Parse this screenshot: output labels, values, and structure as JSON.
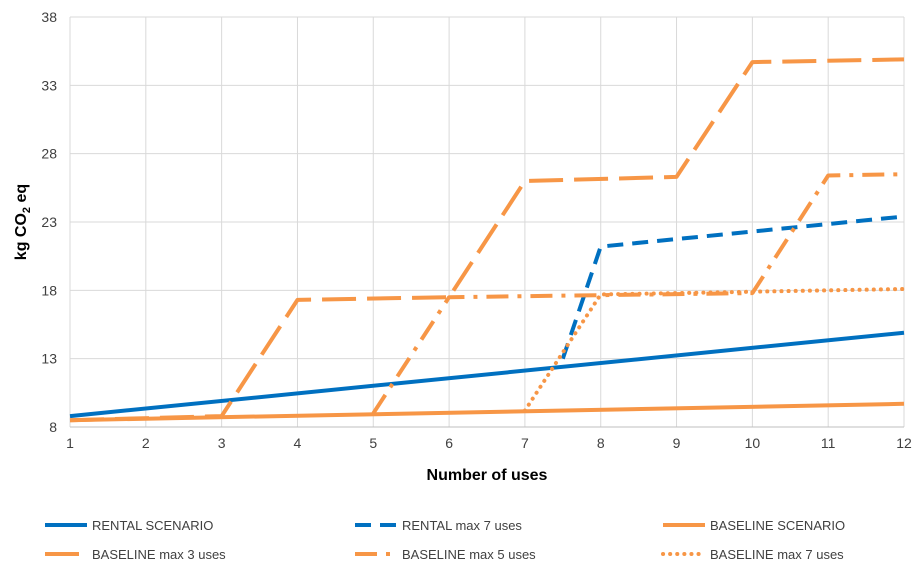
{
  "chart_data": {
    "type": "line",
    "xlabel": "Number of uses",
    "ylabel_main": "kg CO",
    "ylabel_sub": "2",
    "ylabel_tail": " eq",
    "xlim": [
      1,
      12
    ],
    "ylim": [
      8,
      38
    ],
    "x_ticks": [
      1,
      2,
      3,
      4,
      5,
      6,
      7,
      8,
      9,
      10,
      11,
      12
    ],
    "y_ticks": [
      8,
      13,
      18,
      23,
      28,
      33,
      38
    ],
    "grid": true,
    "legend_position": "bottom",
    "series": [
      {
        "name": "RENTAL SCENARIO",
        "color": "#0070C0",
        "style": "solid",
        "points": [
          [
            1,
            8.8
          ],
          [
            12,
            14.9
          ]
        ]
      },
      {
        "name": "RENTAL max 7 uses",
        "color": "#0070C0",
        "style": "dash",
        "points": [
          [
            7.5,
            13.0
          ],
          [
            8,
            21.2
          ],
          [
            12,
            23.4
          ]
        ]
      },
      {
        "name": "BASELINE SCENARIO",
        "color": "#F79646",
        "style": "solid",
        "points": [
          [
            1,
            8.5
          ],
          [
            12,
            9.7
          ]
        ]
      },
      {
        "name": "BASELINE max 3 uses",
        "color": "#F79646",
        "style": "longdash",
        "points": [
          [
            1,
            8.5
          ],
          [
            3,
            8.8
          ],
          [
            4,
            17.3
          ],
          [
            6,
            17.5
          ],
          [
            7,
            26.0
          ],
          [
            9,
            26.3
          ],
          [
            10,
            34.7
          ],
          [
            12,
            34.9
          ]
        ]
      },
      {
        "name": "BASELINE max 5 uses",
        "color": "#F79646",
        "style": "dashdot",
        "points": [
          [
            5,
            9.0
          ],
          [
            6,
            17.5
          ],
          [
            10,
            17.8
          ],
          [
            11,
            26.4
          ],
          [
            12,
            26.5
          ]
        ]
      },
      {
        "name": "BASELINE max 7 uses",
        "color": "#F79646",
        "style": "dot",
        "points": [
          [
            7,
            9.2
          ],
          [
            8,
            17.7
          ],
          [
            12,
            18.1
          ]
        ]
      }
    ]
  }
}
